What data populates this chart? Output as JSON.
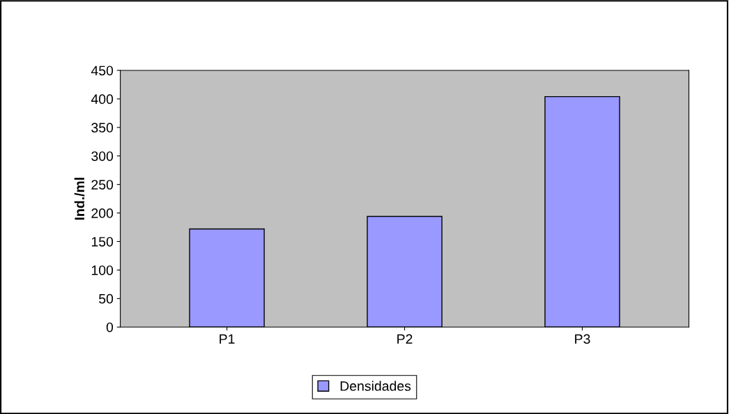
{
  "chart_data": {
    "type": "bar",
    "categories": [
      "P1",
      "P2",
      "P3"
    ],
    "series": [
      {
        "name": "Densidades",
        "color": "#9999ff",
        "values": [
          172,
          194,
          404
        ]
      }
    ],
    "ylabel": "Ind./ml",
    "ylim": [
      0,
      450
    ],
    "yticks": [
      0,
      50,
      100,
      150,
      200,
      250,
      300,
      350,
      400,
      450
    ],
    "grid": false,
    "legend": "bottom"
  }
}
